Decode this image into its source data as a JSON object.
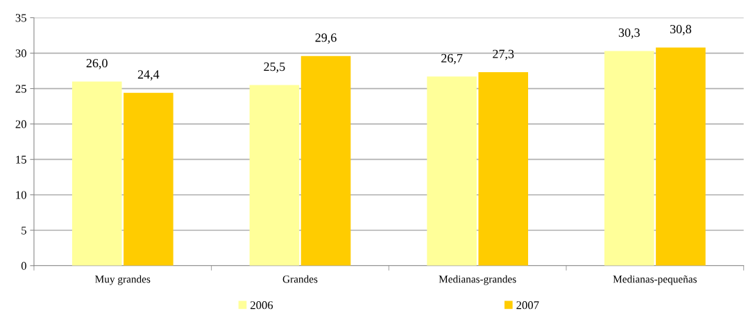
{
  "chart_data": {
    "type": "bar",
    "categories": [
      "Muy grandes",
      "Grandes",
      "Medianas-grandes",
      "Medianas-pequeñas"
    ],
    "series": [
      {
        "name": "2006",
        "color": "#ffff99",
        "values": [
          26.0,
          25.5,
          26.7,
          30.3
        ],
        "value_labels": [
          "26,0",
          "25,5",
          "26,7",
          "30,3"
        ]
      },
      {
        "name": "2007",
        "color": "#ffcc00",
        "values": [
          24.4,
          29.6,
          27.3,
          30.8
        ],
        "value_labels": [
          "24,4",
          "29,6",
          "27,3",
          "30,8"
        ]
      }
    ],
    "ylim": [
      0,
      35
    ],
    "yticks": [
      0,
      5,
      10,
      15,
      20,
      25,
      30,
      35
    ],
    "grid": "y",
    "legend": "bottom"
  }
}
